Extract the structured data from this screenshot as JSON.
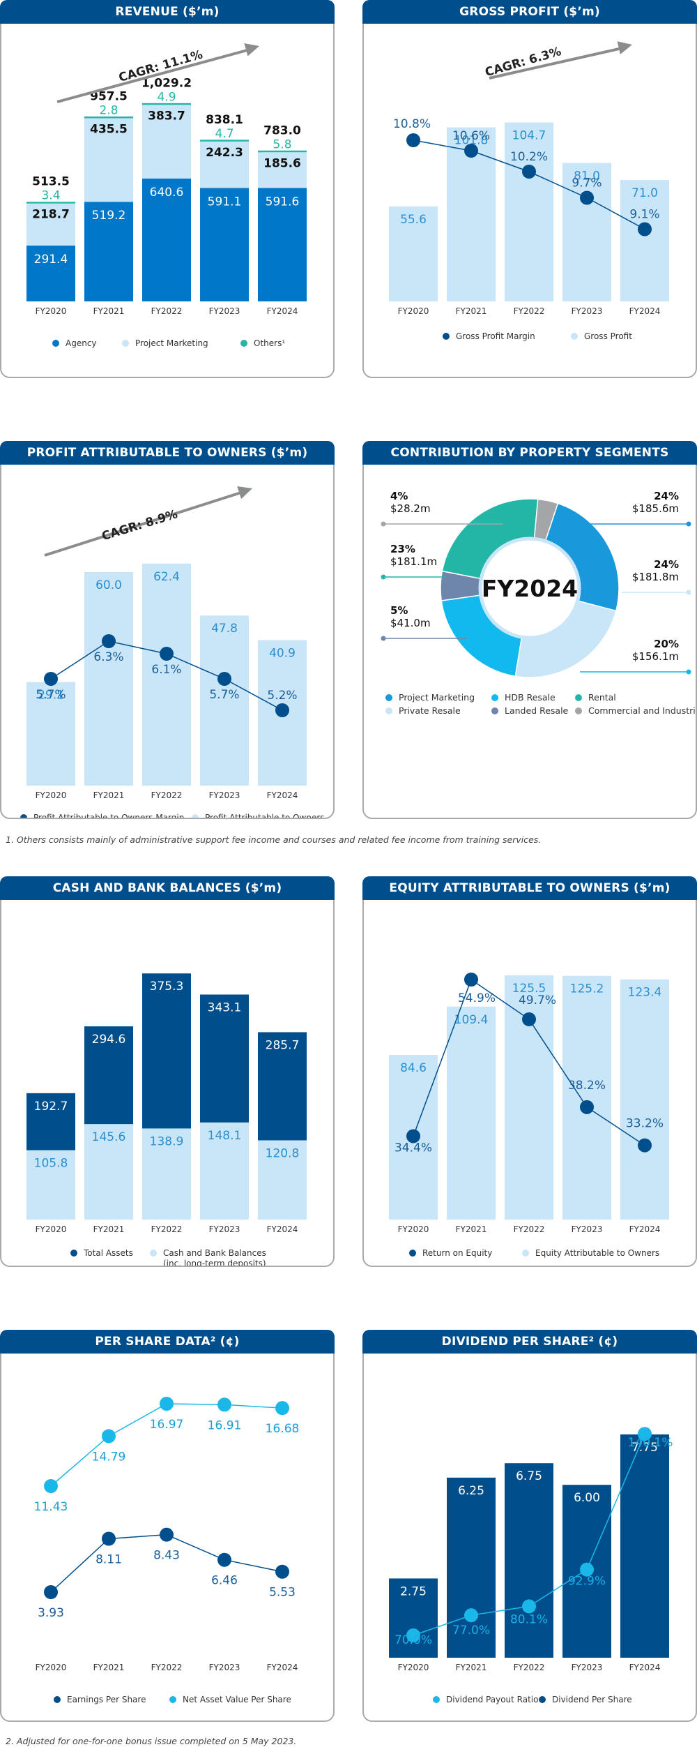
{
  "footnote1": "1.  Others consists mainly of administrative support fee income and courses and related fee income from training services.",
  "footnote2": "2.  Adjusted for one-for-one bonus issue completed on 5 May 2023.",
  "colors": {
    "header": "#004f8c",
    "agency": "#0077c8",
    "light": "#c9e6f8",
    "teal": "#26b5a6",
    "navy": "#004f8c",
    "cyan": "#1ab8e8"
  },
  "chart_data": [
    {
      "id": "revenue",
      "type": "bar",
      "stacked": true,
      "title": "REVENUE ($’m)",
      "categories": [
        "FY2020",
        "FY2021",
        "FY2022",
        "FY2023",
        "FY2024"
      ],
      "series": [
        {
          "name": "Agency",
          "values": [
            291.4,
            519.2,
            640.6,
            591.1,
            591.6
          ]
        },
        {
          "name": "Project Marketing",
          "values": [
            218.7,
            435.5,
            383.7,
            242.3,
            185.6
          ]
        },
        {
          "name": "Others¹",
          "values": [
            3.4,
            2.8,
            4.9,
            4.7,
            5.8
          ]
        }
      ],
      "totals": [
        513.5,
        957.5,
        1029.2,
        838.1,
        783.0
      ],
      "totals_labels": [
        "513.5",
        "957.5",
        "1,029.2",
        "838.1",
        "783.0"
      ],
      "annotation": "CAGR: 11.1%",
      "legend_position": "bottom",
      "ylim": [
        0,
        1100
      ]
    },
    {
      "id": "gross_profit",
      "type": "bar+line",
      "title": "GROSS PROFIT ($’m)",
      "categories": [
        "FY2020",
        "FY2021",
        "FY2022",
        "FY2023",
        "FY2024"
      ],
      "series": [
        {
          "name": "Gross Profit",
          "type": "bar",
          "values": [
            55.6,
            101.8,
            104.7,
            81.0,
            71.0
          ]
        },
        {
          "name": "Gross Profit Margin",
          "type": "line",
          "values": [
            10.8,
            10.6,
            10.2,
            9.7,
            9.1
          ],
          "unit": "%"
        }
      ],
      "annotation": "CAGR: 6.3%",
      "legend_position": "bottom"
    },
    {
      "id": "profit_owners",
      "type": "bar+line",
      "title": "PROFIT ATTRIBUTABLE TO OWNERS ($’m)",
      "categories": [
        "FY2020",
        "FY2021",
        "FY2022",
        "FY2023",
        "FY2024"
      ],
      "series": [
        {
          "name": "Profit Attributable to Owners",
          "type": "bar",
          "values": [
            29.1,
            60.0,
            62.4,
            47.8,
            40.9
          ]
        },
        {
          "name": "Profit Attributable to Owners Margin",
          "type": "line",
          "values": [
            5.7,
            6.3,
            6.1,
            5.7,
            5.2
          ],
          "unit": "%"
        }
      ],
      "annotation": "CAGR: 8.9%",
      "legend_position": "bottom"
    },
    {
      "id": "segments",
      "type": "pie",
      "title": "CONTRIBUTION BY PROPERTY SEGMENTS",
      "center_label": "FY2024",
      "slices": [
        {
          "name": "Project Marketing",
          "percent": "24%",
          "value": "$185.6m",
          "v": 185.6
        },
        {
          "name": "Private Resale",
          "percent": "24%",
          "value": "$181.8m",
          "v": 181.8
        },
        {
          "name": "HDB Resale",
          "percent": "20%",
          "value": "$156.1m",
          "v": 156.1
        },
        {
          "name": "Landed Resale",
          "percent": "5%",
          "value": "$41.0m",
          "v": 41.0
        },
        {
          "name": "Rental",
          "percent": "23%",
          "value": "$181.1m",
          "v": 181.1
        },
        {
          "name": "Commercial and Industrial",
          "percent": "4%",
          "value": "$28.2m",
          "v": 28.2
        }
      ],
      "legend_position": "bottom"
    },
    {
      "id": "cash",
      "type": "bar",
      "title": "CASH AND BANK BALANCES ($’m)",
      "categories": [
        "FY2020",
        "FY2021",
        "FY2022",
        "FY2023",
        "FY2024"
      ],
      "series": [
        {
          "name": "Total Assets",
          "values": [
            192.7,
            294.6,
            375.3,
            343.1,
            285.7
          ]
        },
        {
          "name": "Cash and Bank Balances",
          "name_line2": "(inc. long-term deposits)",
          "values": [
            105.8,
            145.6,
            138.9,
            148.1,
            120.8
          ]
        }
      ],
      "legend_position": "bottom"
    },
    {
      "id": "equity",
      "type": "bar+line",
      "title": "EQUITY ATTRIBUTABLE TO OWNERS ($’m)",
      "categories": [
        "FY2020",
        "FY2021",
        "FY2022",
        "FY2023",
        "FY2024"
      ],
      "series": [
        {
          "name": "Equity Attributable to Owners",
          "type": "bar",
          "values": [
            84.6,
            109.4,
            125.5,
            125.2,
            123.4
          ]
        },
        {
          "name": "Return on Equity",
          "type": "line",
          "values": [
            34.4,
            54.9,
            49.7,
            38.2,
            33.2
          ],
          "unit": "%"
        }
      ],
      "legend_position": "bottom"
    },
    {
      "id": "per_share",
      "type": "line",
      "title": "PER SHARE DATA² (¢)",
      "categories": [
        "FY2020",
        "FY2021",
        "FY2022",
        "FY2023",
        "FY2024"
      ],
      "series": [
        {
          "name": "Earnings Per Share",
          "values": [
            3.93,
            8.11,
            8.43,
            6.46,
            5.53
          ]
        },
        {
          "name": "Net Asset Value Per Share",
          "values": [
            11.43,
            14.79,
            16.97,
            16.91,
            16.68
          ]
        }
      ],
      "legend_position": "bottom"
    },
    {
      "id": "dividend",
      "type": "bar+line",
      "title": "DIVIDEND PER SHARE² (¢)",
      "categories": [
        "FY2020",
        "FY2021",
        "FY2022",
        "FY2023",
        "FY2024"
      ],
      "series": [
        {
          "name": "Dividend Per Share",
          "type": "bar",
          "values": [
            2.75,
            6.25,
            6.75,
            6.0,
            7.75
          ]
        },
        {
          "name": "Dividend Payout Ratio",
          "type": "line",
          "values": [
            70.0,
            77.0,
            80.1,
            92.9,
            140.1
          ],
          "unit": "%"
        }
      ],
      "legend_position": "bottom"
    }
  ]
}
